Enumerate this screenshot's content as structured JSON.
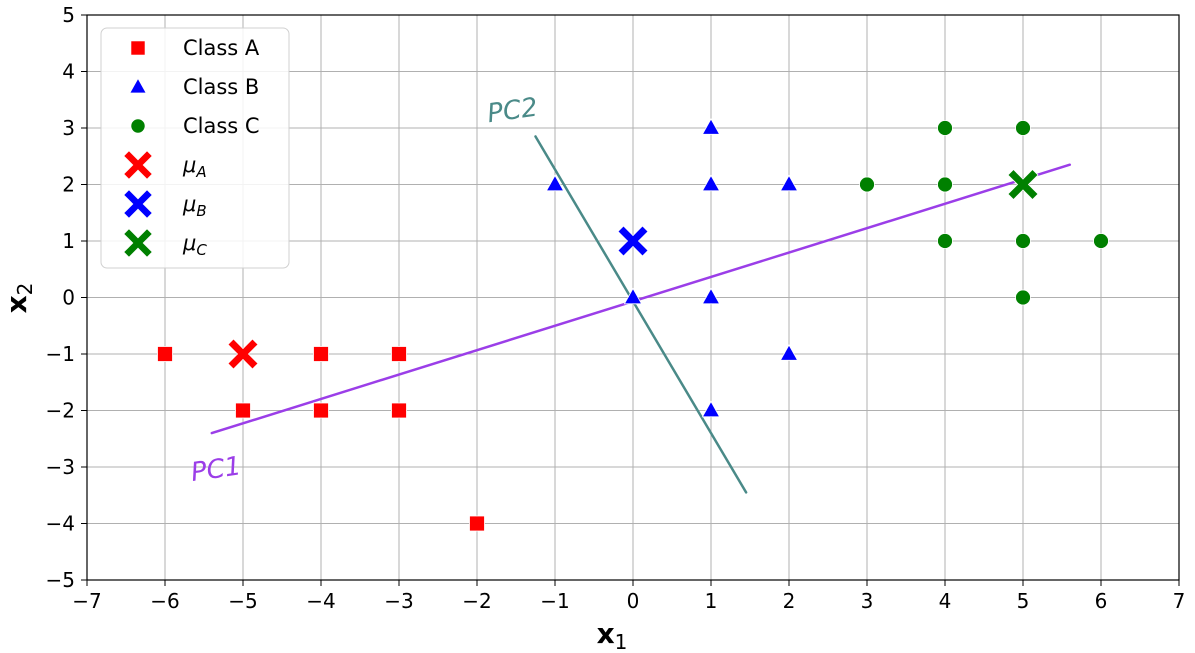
{
  "chart_data": {
    "type": "scatter",
    "xlabel": "x",
    "xlabel_sub": "1",
    "ylabel": "x",
    "ylabel_sub": "2",
    "xlim": [
      -7,
      7
    ],
    "ylim": [
      -5,
      5
    ],
    "xticks": [
      -7,
      -6,
      -5,
      -4,
      -3,
      -2,
      -1,
      0,
      1,
      2,
      3,
      4,
      5,
      6,
      7
    ],
    "yticks": [
      -5,
      -4,
      -3,
      -2,
      -1,
      0,
      1,
      2,
      3,
      4,
      5
    ],
    "grid": true,
    "legend_position": "top-left",
    "series": [
      {
        "name": "Class A",
        "marker": "square",
        "color": "#ff0000",
        "points": [
          [
            -6,
            -1
          ],
          [
            -5,
            -2
          ],
          [
            -4,
            -1
          ],
          [
            -4,
            -2
          ],
          [
            -3,
            -1
          ],
          [
            -3,
            -2
          ],
          [
            -2,
            -4
          ]
        ]
      },
      {
        "name": "Class B",
        "marker": "triangle",
        "color": "#0000ff",
        "points": [
          [
            -1,
            2
          ],
          [
            1,
            3
          ],
          [
            1,
            2
          ],
          [
            2,
            2
          ],
          [
            0,
            0
          ],
          [
            1,
            0
          ],
          [
            2,
            -1
          ],
          [
            1,
            -2
          ]
        ]
      },
      {
        "name": "Class C",
        "marker": "circle",
        "color": "#008000",
        "points": [
          [
            3,
            2
          ],
          [
            4,
            3
          ],
          [
            4,
            2
          ],
          [
            4,
            1
          ],
          [
            5,
            3
          ],
          [
            5,
            1
          ],
          [
            5,
            0
          ],
          [
            6,
            1
          ]
        ]
      }
    ],
    "means": [
      {
        "name": "μ",
        "sub": "A",
        "color": "#ff0000",
        "point": [
          -5,
          -1
        ]
      },
      {
        "name": "μ",
        "sub": "B",
        "color": "#0000ff",
        "point": [
          0,
          1
        ]
      },
      {
        "name": "μ",
        "sub": "C",
        "color": "#008000",
        "point": [
          5,
          2
        ]
      }
    ],
    "lines": [
      {
        "name": "PC1",
        "color": "#9b3ee8",
        "from": [
          -5.4,
          -2.4
        ],
        "to": [
          5.6,
          2.35
        ]
      },
      {
        "name": "PC2",
        "color": "#4a8a88",
        "from": [
          -1.25,
          2.85
        ],
        "to": [
          1.45,
          -3.45
        ]
      }
    ],
    "annotations": [
      {
        "text": "PC2",
        "color": "#4a8a88",
        "at": [
          -1.85,
          3.1
        ]
      },
      {
        "text": "PC1",
        "color": "#9b3ee8",
        "at": [
          -5.65,
          -3.25
        ]
      }
    ]
  }
}
